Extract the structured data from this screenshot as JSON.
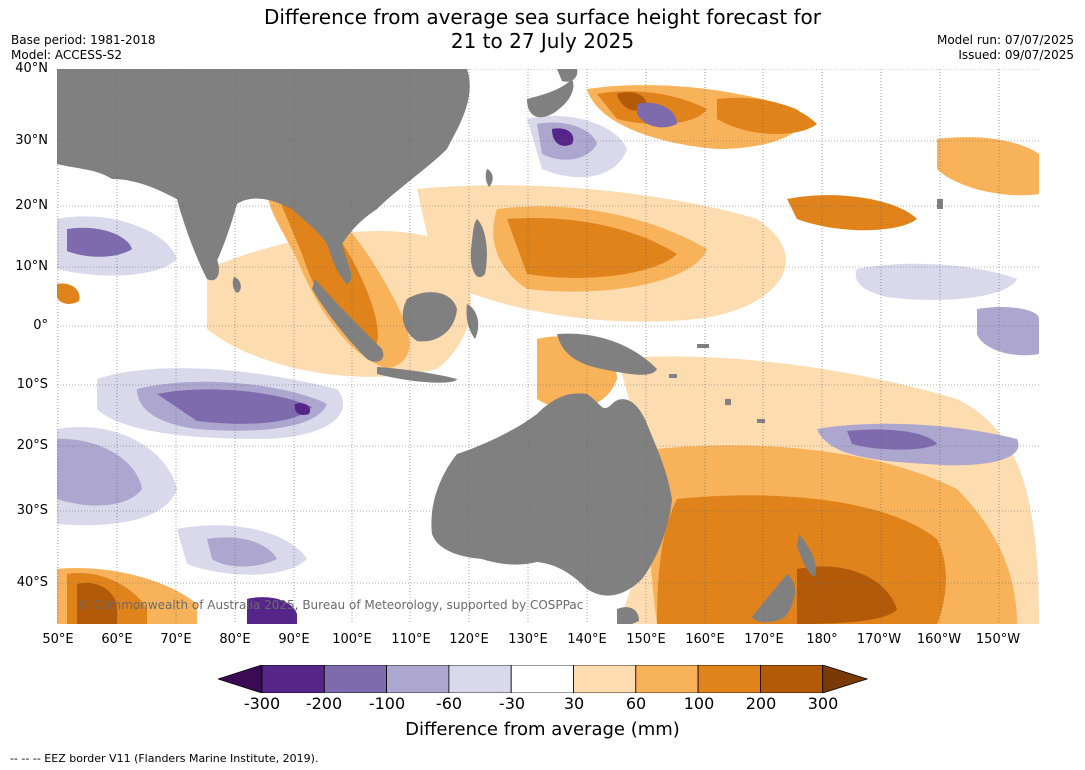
{
  "title_line1": "Difference from average sea surface height forecast for",
  "title_line2": "21 to 27 July 2025",
  "base_period": "Base period: 1981-2018",
  "model": "Model: ACCESS-S2",
  "model_run": "Model run: 07/07/2025",
  "issued": "Issued: 09/07/2025",
  "lat_labels": [
    "40°N",
    "30°N",
    "20°N",
    "10°N",
    "0°",
    "10°S",
    "20°S",
    "30°S",
    "40°S"
  ],
  "lon_labels": [
    "50°E",
    "60°E",
    "70°E",
    "80°E",
    "90°E",
    "100°E",
    "110°E",
    "120°E",
    "130°E",
    "140°E",
    "150°E",
    "160°E",
    "170°E",
    "180°",
    "170°W",
    "160°W",
    "150°W"
  ],
  "copyright": "© Commonwealth of Australia 2025, Bureau of Meteorology, supported by COSPPac",
  "colorbar": {
    "title": "Difference from average (mm)",
    "ticks": [
      "-300",
      "-200",
      "-100",
      "-60",
      "-30",
      "30",
      "60",
      "100",
      "200",
      "300"
    ],
    "colors": [
      "#3b0a55",
      "#56258a",
      "#7e6bae",
      "#ada6cf",
      "#d9d9eb",
      "#ffffff",
      "#fddcb0",
      "#f8b25a",
      "#e0831b",
      "#b35a09",
      "#7a3a05"
    ]
  },
  "land_color": "#808080",
  "footer": "--  --  -- EEZ border V11 (Flanders Marine Institute, 2019)."
}
